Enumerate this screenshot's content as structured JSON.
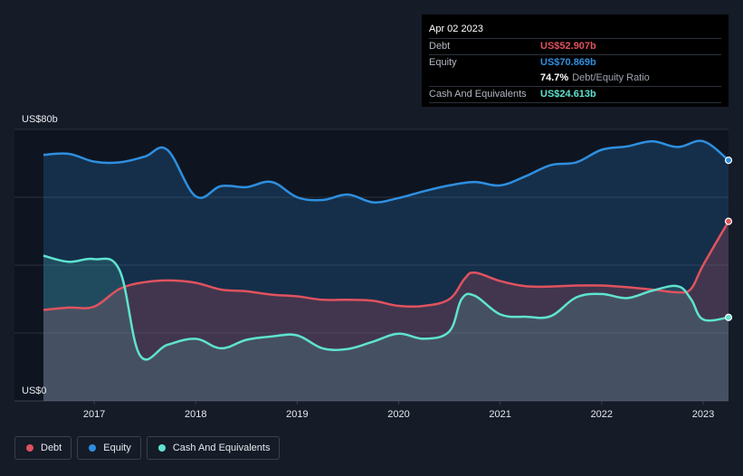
{
  "colors": {
    "debt": "#e0525e",
    "equity": "#2e8fe0",
    "cash": "#5fe3cf",
    "background": "#151b27"
  },
  "tooltip": {
    "date": "Apr 02 2023",
    "debt_label": "Debt",
    "debt_value": "US$52.907b",
    "equity_label": "Equity",
    "equity_value": "US$70.869b",
    "ratio_value": "74.7%",
    "ratio_label": "Debt/Equity Ratio",
    "cash_label": "Cash And Equivalents",
    "cash_value": "US$24.613b"
  },
  "legend": [
    {
      "label": "Debt",
      "color": "#e0525e"
    },
    {
      "label": "Equity",
      "color": "#2e8fe0"
    },
    {
      "label": "Cash And Equivalents",
      "color": "#5fe3cf"
    }
  ],
  "chart_data": {
    "type": "area",
    "y_top_label": "US$80b",
    "y_bottom_label": "US$0",
    "ylim": [
      0,
      80
    ],
    "xlim": [
      2016.5,
      2023.25
    ],
    "x_ticks": [
      "2017",
      "2018",
      "2019",
      "2020",
      "2021",
      "2022",
      "2023"
    ],
    "grid": true,
    "legend_position": "bottom-left",
    "series": [
      {
        "name": "Equity",
        "x": [
          2016.5,
          2016.75,
          2017.0,
          2017.25,
          2017.5,
          2017.72,
          2018.0,
          2018.25,
          2018.5,
          2018.75,
          2019.0,
          2019.25,
          2019.5,
          2019.75,
          2020.0,
          2020.25,
          2020.5,
          2020.75,
          2021.0,
          2021.25,
          2021.5,
          2021.75,
          2022.0,
          2022.25,
          2022.5,
          2022.75,
          2023.0,
          2023.25
        ],
        "values": [
          72.5,
          72.8,
          70.5,
          70.3,
          72.0,
          74.0,
          60.3,
          63.3,
          63.0,
          64.5,
          60.0,
          59.2,
          60.8,
          58.5,
          59.8,
          61.8,
          63.5,
          64.5,
          63.5,
          66.2,
          69.5,
          70.3,
          74.0,
          75.0,
          76.5,
          74.8,
          76.5,
          70.9
        ]
      },
      {
        "name": "Debt",
        "x": [
          2016.5,
          2016.75,
          2017.0,
          2017.25,
          2017.5,
          2017.75,
          2018.0,
          2018.25,
          2018.5,
          2018.75,
          2019.0,
          2019.25,
          2019.5,
          2019.75,
          2020.0,
          2020.25,
          2020.5,
          2020.65,
          2020.75,
          2021.0,
          2021.25,
          2021.5,
          2021.75,
          2022.0,
          2022.25,
          2022.5,
          2022.75,
          2022.88,
          2023.0,
          2023.25
        ],
        "values": [
          26.8,
          27.5,
          27.8,
          33.0,
          35.0,
          35.5,
          34.8,
          32.8,
          32.3,
          31.3,
          30.8,
          29.8,
          29.8,
          29.5,
          28.0,
          28.0,
          30.0,
          36.0,
          37.8,
          35.3,
          33.8,
          33.7,
          34.0,
          34.0,
          33.5,
          32.8,
          32.0,
          33.0,
          40.0,
          52.9
        ]
      },
      {
        "name": "Cash And Equivalents",
        "x": [
          2016.5,
          2016.75,
          2017.0,
          2017.25,
          2017.45,
          2017.72,
          2018.0,
          2018.25,
          2018.5,
          2018.75,
          2019.0,
          2019.25,
          2019.5,
          2019.75,
          2020.0,
          2020.25,
          2020.5,
          2020.62,
          2020.75,
          2021.0,
          2021.25,
          2021.5,
          2021.75,
          2022.0,
          2022.25,
          2022.5,
          2022.75,
          2022.88,
          2023.0,
          2023.25
        ],
        "values": [
          42.8,
          41.0,
          41.8,
          38.5,
          13.5,
          16.5,
          18.3,
          15.5,
          18.0,
          19.0,
          19.3,
          15.5,
          15.3,
          17.5,
          19.8,
          18.3,
          20.5,
          30.0,
          31.0,
          25.5,
          24.8,
          25.0,
          30.5,
          31.5,
          30.3,
          32.5,
          33.8,
          30.0,
          24.0,
          24.6
        ]
      }
    ]
  }
}
